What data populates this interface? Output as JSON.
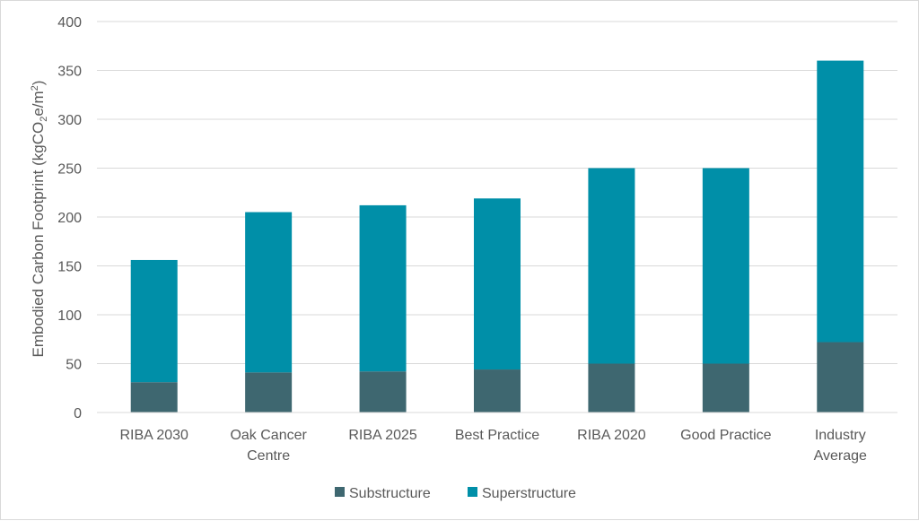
{
  "chart_data": {
    "type": "bar",
    "stacked": true,
    "categories": [
      [
        "RIBA 2030"
      ],
      [
        "Oak Cancer",
        "Centre"
      ],
      [
        "RIBA 2025"
      ],
      [
        "Best Practice"
      ],
      [
        "RIBA 2020"
      ],
      [
        "Good Practice"
      ],
      [
        "Industry",
        "Average"
      ]
    ],
    "series": [
      {
        "name": "Substructure",
        "color": "#3e6770",
        "values": [
          31,
          41,
          42,
          44,
          50,
          50,
          72
        ]
      },
      {
        "name": "Superstructure",
        "color": "#008fa8",
        "values": [
          125,
          164,
          170,
          175,
          200,
          200,
          288
        ]
      }
    ],
    "ylabel": {
      "main": "Embodied Carbon Footprint (kgCO",
      "sub": "2",
      "mid": "e/m",
      "sup": "2",
      "end": ")"
    },
    "ylim": [
      0,
      400
    ],
    "yticks": [
      0,
      50,
      100,
      150,
      200,
      250,
      300,
      350,
      400
    ],
    "grid": true,
    "legend_position": "bottom"
  }
}
